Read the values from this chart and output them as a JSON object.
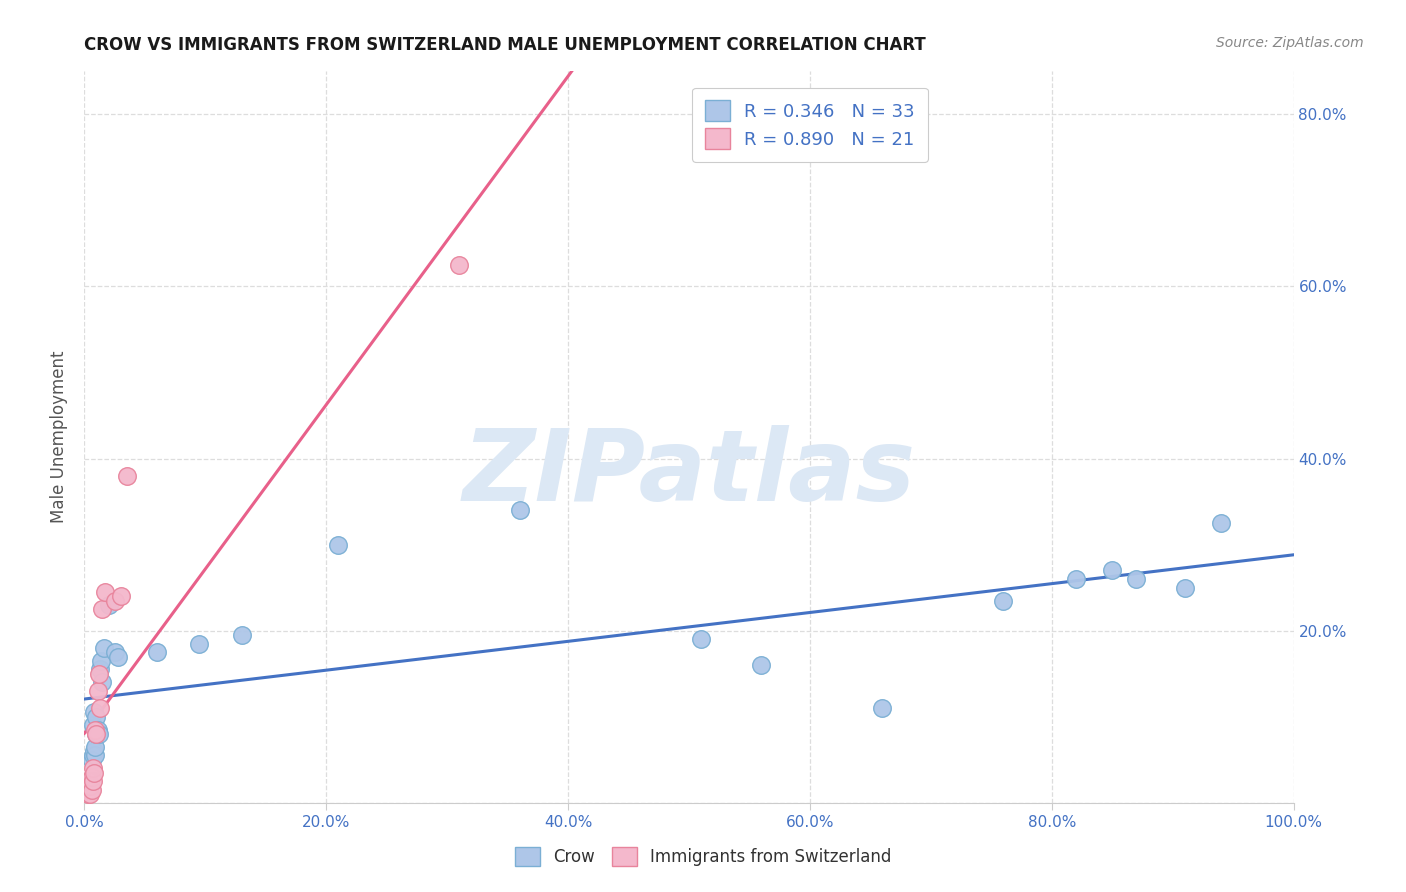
{
  "title": "CROW VS IMMIGRANTS FROM SWITZERLAND MALE UNEMPLOYMENT CORRELATION CHART",
  "source": "Source: ZipAtlas.com",
  "ylabel": "Male Unemployment",
  "xlim": [
    0.0,
    1.0
  ],
  "ylim": [
    0.0,
    0.85
  ],
  "xticks": [
    0.0,
    0.2,
    0.4,
    0.6,
    0.8,
    1.0
  ],
  "yticks": [
    0.0,
    0.2,
    0.4,
    0.6,
    0.8
  ],
  "xtick_labels": [
    "0.0%",
    "20.0%",
    "40.0%",
    "60.0%",
    "80.0%",
    "100.0%"
  ],
  "ytick_labels_right": [
    "",
    "20.0%",
    "40.0%",
    "60.0%",
    "80.0%"
  ],
  "crow_color": "#aec6e8",
  "crow_edge_color": "#7bafd4",
  "immigrants_color": "#f4b8cc",
  "immigrants_edge_color": "#e8849c",
  "crow_line_color": "#4472c4",
  "immigrants_line_color": "#e8608a",
  "crow_R": 0.346,
  "crow_N": 33,
  "immigrants_R": 0.89,
  "immigrants_N": 21,
  "crow_x": [
    0.005,
    0.006,
    0.007,
    0.007,
    0.008,
    0.008,
    0.009,
    0.009,
    0.01,
    0.01,
    0.011,
    0.012,
    0.013,
    0.014,
    0.015,
    0.016,
    0.02,
    0.025,
    0.028,
    0.06,
    0.095,
    0.13,
    0.21,
    0.36,
    0.51,
    0.56,
    0.66,
    0.76,
    0.82,
    0.85,
    0.87,
    0.91,
    0.94
  ],
  "crow_y": [
    0.02,
    0.05,
    0.055,
    0.09,
    0.06,
    0.105,
    0.055,
    0.065,
    0.08,
    0.1,
    0.085,
    0.08,
    0.155,
    0.165,
    0.14,
    0.18,
    0.23,
    0.175,
    0.17,
    0.175,
    0.185,
    0.195,
    0.3,
    0.34,
    0.19,
    0.16,
    0.11,
    0.235,
    0.26,
    0.27,
    0.26,
    0.25,
    0.325
  ],
  "immigrants_x": [
    0.003,
    0.004,
    0.004,
    0.005,
    0.005,
    0.006,
    0.006,
    0.007,
    0.007,
    0.008,
    0.009,
    0.01,
    0.011,
    0.012,
    0.013,
    0.015,
    0.017,
    0.025,
    0.03,
    0.035,
    0.31
  ],
  "immigrants_y": [
    0.01,
    0.015,
    0.025,
    0.01,
    0.02,
    0.015,
    0.03,
    0.025,
    0.04,
    0.035,
    0.085,
    0.08,
    0.13,
    0.15,
    0.11,
    0.225,
    0.245,
    0.235,
    0.24,
    0.38,
    0.625
  ],
  "watermark_text": "ZIPatlas",
  "watermark_color": "#dce8f5",
  "background_color": "#ffffff",
  "grid_color": "#dddddd",
  "tick_color": "#4472c4",
  "title_color": "#1a1a1a",
  "ylabel_color": "#555555",
  "source_color": "#888888"
}
